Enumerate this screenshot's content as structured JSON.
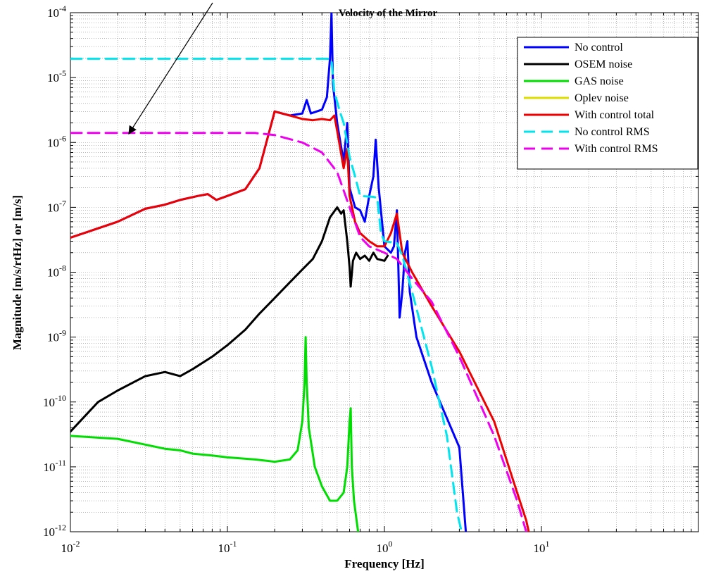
{
  "chart_data": {
    "type": "line",
    "title": "Velocity of the Mirror",
    "xlabel": "Frequency [Hz]",
    "ylabel": "Magnitude [m/s/rtHz] or [m/s]",
    "xscale": "log",
    "yscale": "log",
    "xlim": [
      0.01,
      100
    ],
    "ylim": [
      1e-12,
      0.0001
    ],
    "grid": "on (major and minor)",
    "legend_position": "top-right",
    "x_ticks": [
      {
        "base": "10",
        "exp": "-2"
      },
      {
        "base": "10",
        "exp": "-1"
      },
      {
        "base": "10",
        "exp": "0"
      },
      {
        "base": "10",
        "exp": "1"
      }
    ],
    "y_ticks": [
      {
        "base": "10",
        "exp": "-4"
      },
      {
        "base": "10",
        "exp": "-5"
      },
      {
        "base": "10",
        "exp": "-6"
      },
      {
        "base": "10",
        "exp": "-7"
      },
      {
        "base": "10",
        "exp": "-8"
      },
      {
        "base": "10",
        "exp": "-9"
      },
      {
        "base": "10",
        "exp": "-10"
      },
      {
        "base": "10",
        "exp": "-11"
      },
      {
        "base": "10",
        "exp": "-12"
      }
    ],
    "series": [
      {
        "name": "No control",
        "color": "#0000ff",
        "dash": "solid",
        "points": [
          [
            0.01,
            3.4e-08
          ],
          [
            0.02,
            6e-08
          ],
          [
            0.03,
            9.5e-08
          ],
          [
            0.04,
            1.1e-07
          ],
          [
            0.05,
            1.3e-07
          ],
          [
            0.065,
            1.5e-07
          ],
          [
            0.075,
            1.6e-07
          ],
          [
            0.085,
            1.3e-07
          ],
          [
            0.1,
            1.5e-07
          ],
          [
            0.13,
            1.9e-07
          ],
          [
            0.16,
            4e-07
          ],
          [
            0.2,
            3e-06
          ],
          [
            0.25,
            2.6e-06
          ],
          [
            0.3,
            2.8e-06
          ],
          [
            0.32,
            4.5e-06
          ],
          [
            0.34,
            2.8e-06
          ],
          [
            0.4,
            3.2e-06
          ],
          [
            0.43,
            5e-06
          ],
          [
            0.45,
            2e-05
          ],
          [
            0.46,
            0.0001
          ],
          [
            0.47,
            8e-06
          ],
          [
            0.5,
            2e-06
          ],
          [
            0.55,
            5e-07
          ],
          [
            0.58,
            2e-06
          ],
          [
            0.6,
            2e-07
          ],
          [
            0.65,
            1e-07
          ],
          [
            0.7,
            9e-08
          ],
          [
            0.75,
            6e-08
          ],
          [
            0.8,
            1.5e-07
          ],
          [
            0.85,
            3e-07
          ],
          [
            0.88,
            1.1e-06
          ],
          [
            0.92,
            2e-07
          ],
          [
            1.0,
            2.5e-08
          ],
          [
            1.1,
            2e-08
          ],
          [
            1.15,
            2.5e-08
          ],
          [
            1.2,
            9e-08
          ],
          [
            1.25,
            2e-09
          ],
          [
            1.3,
            5e-09
          ],
          [
            1.35,
            2e-08
          ],
          [
            1.4,
            3e-08
          ],
          [
            1.45,
            5e-09
          ],
          [
            1.6,
            1e-09
          ],
          [
            2.0,
            2e-10
          ],
          [
            3.0,
            2e-11
          ],
          [
            3.3,
            1e-12
          ]
        ]
      },
      {
        "name": "OSEM noise",
        "color": "#000000",
        "dash": "solid",
        "points": [
          [
            0.01,
            3.5e-11
          ],
          [
            0.015,
            1e-10
          ],
          [
            0.02,
            1.5e-10
          ],
          [
            0.03,
            2.5e-10
          ],
          [
            0.04,
            2.9e-10
          ],
          [
            0.05,
            2.5e-10
          ],
          [
            0.06,
            3.2e-10
          ],
          [
            0.08,
            5e-10
          ],
          [
            0.1,
            7.5e-10
          ],
          [
            0.13,
            1.3e-09
          ],
          [
            0.16,
            2.3e-09
          ],
          [
            0.2,
            4e-09
          ],
          [
            0.25,
            7e-09
          ],
          [
            0.3,
            1.1e-08
          ],
          [
            0.35,
            1.6e-08
          ],
          [
            0.4,
            3e-08
          ],
          [
            0.45,
            7e-08
          ],
          [
            0.5,
            1e-07
          ],
          [
            0.53,
            8e-08
          ],
          [
            0.55,
            9e-08
          ],
          [
            0.58,
            3e-08
          ],
          [
            0.6,
            1.2e-08
          ],
          [
            0.61,
            6e-09
          ],
          [
            0.63,
            1.5e-08
          ],
          [
            0.66,
            2e-08
          ],
          [
            0.7,
            1.6e-08
          ],
          [
            0.75,
            1.8e-08
          ],
          [
            0.8,
            1.5e-08
          ],
          [
            0.85,
            2e-08
          ],
          [
            0.9,
            1.6e-08
          ],
          [
            1.0,
            1.5e-08
          ],
          [
            1.05,
            1.8e-08
          ]
        ]
      },
      {
        "name": "GAS noise",
        "color": "#00dd00",
        "dash": "solid",
        "points": [
          [
            0.01,
            3e-11
          ],
          [
            0.02,
            2.7e-11
          ],
          [
            0.03,
            2.2e-11
          ],
          [
            0.04,
            1.9e-11
          ],
          [
            0.05,
            1.8e-11
          ],
          [
            0.06,
            1.6e-11
          ],
          [
            0.08,
            1.5e-11
          ],
          [
            0.1,
            1.4e-11
          ],
          [
            0.15,
            1.3e-11
          ],
          [
            0.2,
            1.2e-11
          ],
          [
            0.25,
            1.3e-11
          ],
          [
            0.28,
            1.8e-11
          ],
          [
            0.3,
            5e-11
          ],
          [
            0.31,
            2e-10
          ],
          [
            0.315,
            1e-09
          ],
          [
            0.32,
            2e-10
          ],
          [
            0.33,
            4e-11
          ],
          [
            0.36,
            1e-11
          ],
          [
            0.4,
            5e-12
          ],
          [
            0.45,
            3e-12
          ],
          [
            0.5,
            3e-12
          ],
          [
            0.55,
            4e-12
          ],
          [
            0.58,
            1e-11
          ],
          [
            0.6,
            5e-11
          ],
          [
            0.61,
            8e-11
          ],
          [
            0.62,
            1e-11
          ],
          [
            0.64,
            3e-12
          ],
          [
            0.68,
            1e-12
          ]
        ]
      },
      {
        "name": "Oplev noise",
        "color": "#dddd00",
        "dash": "solid",
        "points": []
      },
      {
        "name": "With control total",
        "color": "#ee0000",
        "dash": "solid",
        "points": [
          [
            0.01,
            3.4e-08
          ],
          [
            0.02,
            6e-08
          ],
          [
            0.03,
            9.5e-08
          ],
          [
            0.04,
            1.1e-07
          ],
          [
            0.05,
            1.3e-07
          ],
          [
            0.065,
            1.5e-07
          ],
          [
            0.075,
            1.6e-07
          ],
          [
            0.085,
            1.3e-07
          ],
          [
            0.1,
            1.5e-07
          ],
          [
            0.13,
            1.9e-07
          ],
          [
            0.16,
            4e-07
          ],
          [
            0.2,
            3e-06
          ],
          [
            0.25,
            2.6e-06
          ],
          [
            0.3,
            2.3e-06
          ],
          [
            0.35,
            2.2e-06
          ],
          [
            0.4,
            2.3e-06
          ],
          [
            0.45,
            2.2e-06
          ],
          [
            0.48,
            2.6e-06
          ],
          [
            0.5,
            1.5e-06
          ],
          [
            0.55,
            4e-07
          ],
          [
            0.58,
            8e-07
          ],
          [
            0.6,
            1.5e-07
          ],
          [
            0.65,
            6e-08
          ],
          [
            0.7,
            4e-08
          ],
          [
            0.8,
            3e-08
          ],
          [
            0.9,
            2.5e-08
          ],
          [
            1.0,
            2.5e-08
          ],
          [
            1.1,
            4e-08
          ],
          [
            1.2,
            8e-08
          ],
          [
            1.3,
            2e-08
          ],
          [
            1.5,
            1e-08
          ],
          [
            2.0,
            3e-09
          ],
          [
            3.0,
            6e-10
          ],
          [
            5.0,
            5e-11
          ],
          [
            7.0,
            4e-12
          ],
          [
            8.0,
            1.5e-12
          ],
          [
            8.3,
            1e-12
          ]
        ]
      },
      {
        "name": "No control RMS",
        "color": "#00e5ee",
        "dash": "dashed",
        "points": [
          [
            0.01,
            1.95e-05
          ],
          [
            0.43,
            1.95e-05
          ],
          [
            0.46,
            1.9e-05
          ],
          [
            0.48,
            6e-06
          ],
          [
            0.52,
            3e-06
          ],
          [
            0.55,
            2e-06
          ],
          [
            0.6,
            6e-07
          ],
          [
            0.65,
            3e-07
          ],
          [
            0.7,
            1.5e-07
          ],
          [
            0.85,
            1.45e-07
          ],
          [
            0.9,
            1.4e-07
          ],
          [
            0.95,
            4e-08
          ],
          [
            1.0,
            3e-08
          ],
          [
            1.2,
            2.8e-08
          ],
          [
            1.3,
            1.8e-08
          ],
          [
            1.5,
            5e-09
          ],
          [
            2.0,
            3.5e-10
          ],
          [
            2.5,
            3e-11
          ],
          [
            2.9,
            2e-12
          ],
          [
            3.1,
            1e-12
          ]
        ]
      },
      {
        "name": "With control RMS",
        "color": "#ee00ee",
        "dash": "dashed",
        "points": [
          [
            0.01,
            1.4e-06
          ],
          [
            0.1,
            1.4e-06
          ],
          [
            0.15,
            1.4e-06
          ],
          [
            0.2,
            1.3e-06
          ],
          [
            0.3,
            1e-06
          ],
          [
            0.4,
            7e-07
          ],
          [
            0.5,
            3.5e-07
          ],
          [
            0.6,
            1e-07
          ],
          [
            0.7,
            3.5e-08
          ],
          [
            0.8,
            2.5e-08
          ],
          [
            1.0,
            2e-08
          ],
          [
            1.2,
            1.6e-08
          ],
          [
            1.5,
            8e-09
          ],
          [
            2.0,
            3.5e-09
          ],
          [
            3.0,
            5e-10
          ],
          [
            5.0,
            3e-11
          ],
          [
            7.0,
            3e-12
          ],
          [
            8.0,
            1e-12
          ]
        ]
      }
    ]
  }
}
